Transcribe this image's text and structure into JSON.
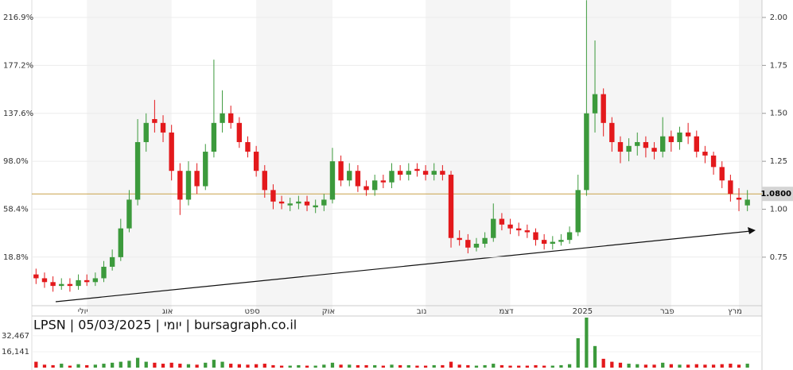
{
  "chart_data": [
    {
      "type": "candlestick",
      "title": "LPSN | 05/03/2025 | יומי | bursagraph.co.il",
      "categories": [
        null,
        null,
        null,
        null,
        null,
        null,
        "יולי",
        null,
        null,
        null,
        null,
        null,
        null,
        null,
        null,
        null,
        "אוג",
        null,
        null,
        null,
        null,
        null,
        null,
        null,
        null,
        null,
        "ספט",
        null,
        null,
        null,
        null,
        null,
        null,
        null,
        null,
        "אוק",
        null,
        null,
        null,
        null,
        null,
        null,
        null,
        null,
        null,
        null,
        "נוב",
        null,
        null,
        null,
        null,
        null,
        null,
        null,
        null,
        null,
        "דצמ",
        null,
        null,
        null,
        null,
        null,
        null,
        null,
        null,
        "2025",
        null,
        null,
        null,
        null,
        null,
        null,
        null,
        null,
        null,
        "פבר",
        null,
        null,
        null,
        null,
        null,
        null,
        null,
        "מרץ",
        null
      ],
      "open": [
        0.66,
        0.64,
        0.62,
        0.6,
        0.61,
        0.6,
        0.63,
        0.62,
        0.64,
        0.7,
        0.75,
        0.9,
        1.05,
        1.35,
        1.47,
        1.45,
        1.4,
        1.2,
        1.05,
        1.2,
        1.12,
        1.3,
        1.45,
        1.5,
        1.45,
        1.35,
        1.3,
        1.2,
        1.1,
        1.04,
        1.02,
        1.03,
        1.04,
        1.01,
        1.02,
        1.05,
        1.25,
        1.15,
        1.2,
        1.12,
        1.1,
        1.15,
        1.14,
        1.2,
        1.18,
        1.21,
        1.2,
        1.18,
        1.2,
        1.18,
        0.85,
        0.84,
        0.8,
        0.82,
        0.85,
        0.95,
        0.92,
        0.9,
        0.89,
        0.88,
        0.84,
        0.82,
        0.83,
        0.84,
        0.88,
        1.1,
        1.5,
        1.6,
        1.45,
        1.35,
        1.3,
        1.33,
        1.35,
        1.32,
        1.3,
        1.38,
        1.35,
        1.4,
        1.38,
        1.3,
        1.28,
        1.22,
        1.15,
        1.06,
        1.02
      ],
      "high": [
        0.69,
        0.67,
        0.65,
        0.64,
        0.64,
        0.66,
        0.66,
        0.67,
        0.73,
        0.79,
        0.95,
        1.1,
        1.47,
        1.5,
        1.57,
        1.49,
        1.44,
        1.24,
        1.25,
        1.24,
        1.34,
        1.78,
        1.62,
        1.54,
        1.48,
        1.38,
        1.33,
        1.23,
        1.13,
        1.07,
        1.06,
        1.07,
        1.07,
        1.05,
        1.08,
        1.32,
        1.28,
        1.24,
        1.23,
        1.15,
        1.18,
        1.18,
        1.24,
        1.23,
        1.24,
        1.24,
        1.23,
        1.24,
        1.23,
        1.2,
        0.89,
        0.87,
        0.85,
        0.88,
        1.03,
        0.98,
        0.95,
        0.93,
        0.92,
        0.9,
        0.87,
        0.86,
        0.87,
        0.91,
        1.18,
        2.09,
        1.88,
        1.63,
        1.48,
        1.38,
        1.37,
        1.4,
        1.38,
        1.35,
        1.48,
        1.41,
        1.43,
        1.45,
        1.41,
        1.33,
        1.3,
        1.25,
        1.18,
        1.11,
        1.1
      ],
      "low": [
        0.61,
        0.59,
        0.57,
        0.58,
        0.57,
        0.58,
        0.6,
        0.6,
        0.62,
        0.68,
        0.73,
        0.88,
        1.02,
        1.3,
        1.4,
        1.35,
        1.15,
        0.97,
        1.02,
        1.08,
        1.1,
        1.27,
        1.4,
        1.42,
        1.32,
        1.27,
        1.17,
        1.06,
        1.0,
        1.0,
        0.99,
        1.0,
        0.99,
        0.98,
        0.99,
        1.03,
        1.12,
        1.12,
        1.09,
        1.07,
        1.07,
        1.11,
        1.11,
        1.15,
        1.15,
        1.17,
        1.15,
        1.15,
        1.15,
        0.8,
        0.81,
        0.77,
        0.78,
        0.8,
        0.83,
        0.89,
        0.87,
        0.86,
        0.85,
        0.81,
        0.79,
        0.79,
        0.81,
        0.82,
        0.86,
        1.07,
        1.4,
        1.38,
        1.3,
        1.24,
        1.25,
        1.28,
        1.27,
        1.26,
        1.27,
        1.3,
        1.31,
        1.34,
        1.27,
        1.24,
        1.18,
        1.11,
        1.04,
        0.99,
        0.99
      ],
      "close": [
        0.64,
        0.62,
        0.6,
        0.61,
        0.6,
        0.63,
        0.62,
        0.64,
        0.7,
        0.75,
        0.9,
        1.05,
        1.35,
        1.45,
        1.45,
        1.4,
        1.2,
        1.05,
        1.2,
        1.12,
        1.3,
        1.45,
        1.5,
        1.45,
        1.35,
        1.3,
        1.2,
        1.1,
        1.04,
        1.03,
        1.03,
        1.04,
        1.02,
        1.02,
        1.05,
        1.25,
        1.15,
        1.2,
        1.12,
        1.1,
        1.15,
        1.14,
        1.2,
        1.18,
        1.2,
        1.2,
        1.18,
        1.2,
        1.18,
        0.85,
        0.84,
        0.8,
        0.82,
        0.85,
        0.95,
        0.92,
        0.9,
        0.89,
        0.88,
        0.84,
        0.82,
        0.83,
        0.84,
        0.88,
        1.1,
        1.5,
        1.6,
        1.45,
        1.35,
        1.3,
        1.33,
        1.35,
        1.32,
        1.3,
        1.38,
        1.35,
        1.4,
        1.38,
        1.3,
        1.28,
        1.22,
        1.15,
        1.08,
        1.05,
        1.05
      ],
      "up_color": "#3c9a3c",
      "down_color": "#e3191c",
      "ylim": [
        -21.4,
        231.3
      ],
      "yticks": [
        {
          "value": 18.8,
          "label": "18.8%"
        },
        {
          "value": 58.4,
          "label": "58.4%"
        },
        {
          "value": 98.0,
          "label": "98.0%"
        },
        {
          "value": 137.6,
          "label": "137.6%"
        },
        {
          "value": 177.2,
          "label": "177.2%"
        },
        {
          "value": 216.9,
          "label": "216.9%"
        }
      ],
      "y2lim": [
        0.497,
        2.091
      ],
      "y2ticks": [
        0.75,
        {
          "value": 1.0,
          "label": "1.00"
        },
        1.25,
        {
          "value": 1.5,
          "label": "1.50"
        },
        1.75,
        {
          "value": 2.0,
          "label": "2.00"
        }
      ],
      "hline": {
        "value": 1.08,
        "label": "1.0800",
        "color": "#c9a24a"
      }
    },
    {
      "type": "bar",
      "values": [
        6000,
        3000,
        2500,
        4000,
        2000,
        3500,
        2500,
        3000,
        4000,
        5000,
        6000,
        7000,
        10000,
        6000,
        5000,
        4000,
        5000,
        4000,
        3500,
        3000,
        5000,
        8000,
        6000,
        4000,
        3500,
        3000,
        3500,
        4000,
        2500,
        2000,
        2000,
        2500,
        2000,
        2000,
        3000,
        5000,
        3000,
        3000,
        2500,
        2500,
        2500,
        2000,
        3000,
        2500,
        2500,
        2000,
        2000,
        2500,
        2500,
        6000,
        3000,
        2500,
        2000,
        2500,
        4000,
        2500,
        2000,
        2000,
        2000,
        2500,
        2000,
        2000,
        2500,
        3500,
        30000,
        51000,
        22000,
        9000,
        6000,
        5000,
        4000,
        3500,
        3000,
        3000,
        5000,
        3500,
        3000,
        3000,
        3500,
        3000,
        3000,
        3500,
        4000,
        3000,
        4000
      ],
      "ylim": [
        0,
        51000
      ],
      "yticks": [
        {
          "value": 16141,
          "label": "16,141"
        },
        {
          "value": 32467,
          "label": "32,467"
        }
      ]
    }
  ]
}
